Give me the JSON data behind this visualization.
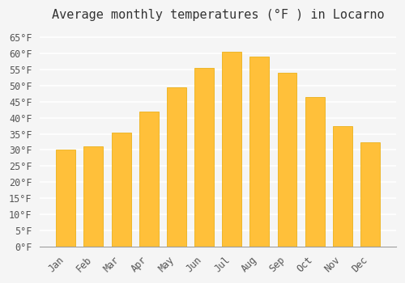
{
  "months": [
    "Jan",
    "Feb",
    "Mar",
    "Apr",
    "May",
    "Jun",
    "Jul",
    "Aug",
    "Sep",
    "Oct",
    "Nov",
    "Dec"
  ],
  "temperatures": [
    30,
    31,
    35.5,
    42,
    49.5,
    55.5,
    60.5,
    59,
    54,
    46.5,
    37.5,
    32.5
  ],
  "bar_color_face": "#FFC03A",
  "bar_color_edge": "#FFD97A",
  "bar_edge_color": "#E8A800",
  "title": "Average monthly temperatures (°F ) in Locarno",
  "ylim": [
    0,
    68
  ],
  "yticks": [
    0,
    5,
    10,
    15,
    20,
    25,
    30,
    35,
    40,
    45,
    50,
    55,
    60,
    65
  ],
  "ytick_labels": [
    "0°F",
    "5°F",
    "10°F",
    "15°F",
    "20°F",
    "25°F",
    "30°F",
    "35°F",
    "40°F",
    "45°F",
    "50°F",
    "55°F",
    "60°F",
    "65°F"
  ],
  "bg_color": "#F5F5F5",
  "grid_color": "#FFFFFF",
  "title_fontsize": 11,
  "tick_fontsize": 8.5,
  "font_family": "monospace"
}
